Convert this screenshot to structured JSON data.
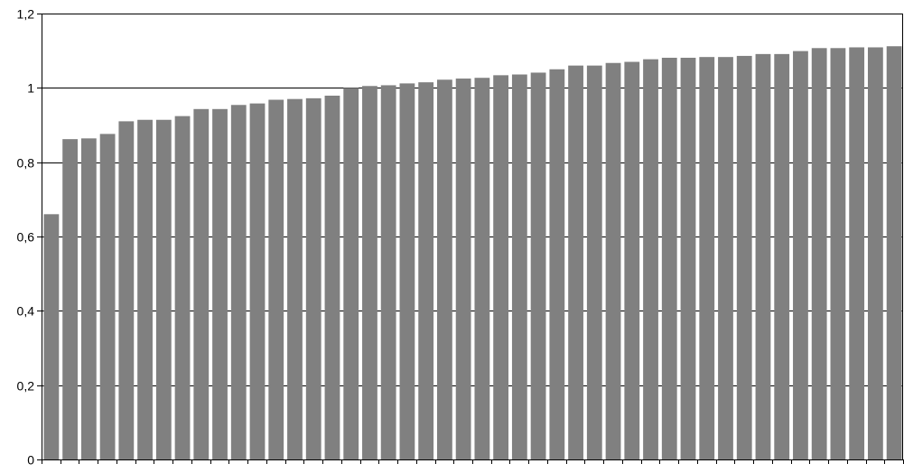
{
  "chart_data": {
    "type": "bar",
    "values": [
      0.66,
      0.862,
      0.864,
      0.876,
      0.91,
      0.914,
      0.914,
      0.924,
      0.943,
      0.943,
      0.954,
      0.958,
      0.968,
      0.97,
      0.972,
      0.979,
      1.0,
      1.005,
      1.007,
      1.012,
      1.015,
      1.022,
      1.025,
      1.027,
      1.034,
      1.036,
      1.041,
      1.05,
      1.06,
      1.06,
      1.067,
      1.07,
      1.077,
      1.081,
      1.081,
      1.083,
      1.083,
      1.086,
      1.091,
      1.091,
      1.099,
      1.107,
      1.107,
      1.109,
      1.109,
      1.112
    ],
    "ylim": [
      0,
      1.2
    ],
    "yticks": [
      0,
      0.2,
      0.4,
      0.6,
      0.8,
      1,
      1.2
    ],
    "ytick_labels": [
      "0",
      "0,2",
      "0,4",
      "0,6",
      "0,8",
      "1",
      "1,2"
    ],
    "grid": "horizontal",
    "bar_color": "#808080",
    "grid_color": "#000000"
  }
}
